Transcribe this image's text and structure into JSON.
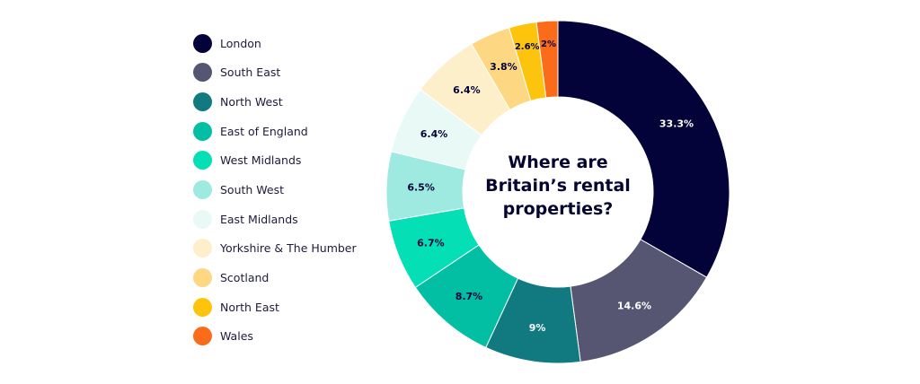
{
  "chart_data": {
    "type": "pie",
    "title": "Where are Britain’s rental properties?",
    "title_lines": [
      "Where are",
      "Britain’s rental",
      "properties?"
    ],
    "legend_position": "left",
    "slices": [
      {
        "name": "London",
        "value": 33.3,
        "label": "33.3%",
        "color": "#03033a",
        "label_color": "#ffffff"
      },
      {
        "name": "South East",
        "value": 14.6,
        "label": "14.6%",
        "color": "#575672",
        "label_color": "#ffffff"
      },
      {
        "name": "North West",
        "value": 9,
        "label": "9%",
        "color": "#107a80",
        "label_color": "#ffffff"
      },
      {
        "name": "East of England",
        "value": 8.7,
        "label": "8.7%",
        "color": "#02bfa4",
        "label_color": "#03033a"
      },
      {
        "name": "West Midlands",
        "value": 6.7,
        "label": "6.7%",
        "color": "#04dfb6",
        "label_color": "#03033a"
      },
      {
        "name": "South West",
        "value": 6.5,
        "label": "6.5%",
        "color": "#9eeae0",
        "label_color": "#03033a"
      },
      {
        "name": "East Midlands",
        "value": 6.4,
        "label": "6.4%",
        "color": "#e9f9f6",
        "label_color": "#03033a"
      },
      {
        "name": "Yorkshire & The Humber",
        "value": 6.4,
        "label": "6.4%",
        "color": "#feefcb",
        "label_color": "#03033a"
      },
      {
        "name": "Scotland",
        "value": 3.8,
        "label": "3.8%",
        "color": "#fdd782",
        "label_color": "#03033a"
      },
      {
        "name": "North East",
        "value": 2.6,
        "label": "2.6%",
        "color": "#fdc40d",
        "label_color": "#03033a"
      },
      {
        "name": "Wales",
        "value": 2,
        "label": "2%",
        "color": "#fb6c1a",
        "label_color": "#03033a"
      }
    ]
  }
}
